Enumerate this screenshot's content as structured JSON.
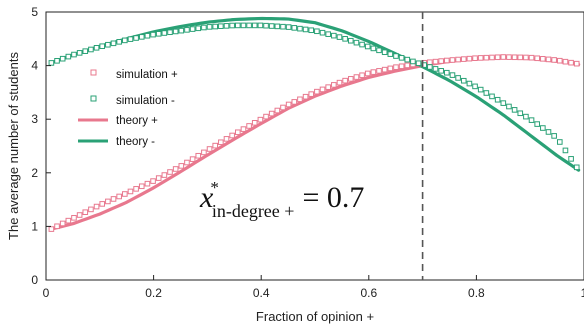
{
  "chart_data": {
    "type": "line",
    "xlabel": "Fraction of opinion +",
    "ylabel": "The average number of students",
    "xlim": [
      0,
      1
    ],
    "ylim": [
      0,
      5
    ],
    "x_ticks": [
      "0",
      "0.2",
      "0.4",
      "0.6",
      "0.8",
      "1"
    ],
    "y_ticks": [
      "0",
      "1",
      "2",
      "3",
      "4",
      "5"
    ],
    "grid": false,
    "legend_position": "upper-left",
    "annotation": {
      "base": "x",
      "superscript": "*",
      "subscript": "in-degree +",
      "equation": "= 0.7",
      "x": 0.28,
      "y": 1.6
    },
    "vline": {
      "x": 0.7,
      "style": "dashed",
      "color": "#555555"
    },
    "colors": {
      "plus": "#e8788e",
      "minus": "#2aa176"
    },
    "series": [
      {
        "name": "simulation +",
        "kind": "markers",
        "color": "#e8788e",
        "x": [
          0.01,
          0.05,
          0.1,
          0.15,
          0.2,
          0.25,
          0.3,
          0.35,
          0.4,
          0.45,
          0.5,
          0.55,
          0.6,
          0.65,
          0.7,
          0.75,
          0.8,
          0.85,
          0.9,
          0.95,
          0.99
        ],
        "y": [
          0.95,
          1.15,
          1.4,
          1.62,
          1.85,
          2.12,
          2.42,
          2.72,
          3.0,
          3.27,
          3.5,
          3.7,
          3.86,
          3.97,
          4.05,
          4.1,
          4.14,
          4.16,
          4.15,
          4.1,
          4.03
        ]
      },
      {
        "name": "simulation -",
        "kind": "markers",
        "color": "#2aa176",
        "x": [
          0.01,
          0.05,
          0.1,
          0.15,
          0.2,
          0.25,
          0.3,
          0.35,
          0.4,
          0.45,
          0.5,
          0.55,
          0.6,
          0.65,
          0.7,
          0.75,
          0.8,
          0.85,
          0.9,
          0.95,
          0.99
        ],
        "y": [
          4.05,
          4.2,
          4.35,
          4.48,
          4.58,
          4.65,
          4.72,
          4.75,
          4.75,
          4.72,
          4.65,
          4.52,
          4.35,
          4.18,
          4.02,
          3.85,
          3.6,
          3.3,
          3.0,
          2.65,
          2.05
        ]
      },
      {
        "name": "theory +",
        "kind": "line",
        "color": "#e8788e",
        "x": [
          0.01,
          0.05,
          0.1,
          0.15,
          0.2,
          0.25,
          0.3,
          0.35,
          0.4,
          0.45,
          0.5,
          0.55,
          0.6,
          0.65,
          0.7,
          0.75,
          0.8,
          0.85,
          0.9,
          0.95,
          0.99
        ],
        "y": [
          0.95,
          1.05,
          1.23,
          1.45,
          1.72,
          2.02,
          2.33,
          2.63,
          2.92,
          3.2,
          3.43,
          3.62,
          3.78,
          3.9,
          4.0,
          4.08,
          4.13,
          4.15,
          4.13,
          4.08,
          4.02
        ]
      },
      {
        "name": "theory -",
        "kind": "line",
        "color": "#2aa176",
        "x": [
          0.01,
          0.05,
          0.1,
          0.15,
          0.2,
          0.25,
          0.3,
          0.35,
          0.4,
          0.45,
          0.5,
          0.55,
          0.6,
          0.65,
          0.7,
          0.75,
          0.8,
          0.85,
          0.9,
          0.95,
          0.99
        ],
        "y": [
          4.05,
          4.2,
          4.36,
          4.5,
          4.63,
          4.73,
          4.81,
          4.86,
          4.88,
          4.87,
          4.8,
          4.65,
          4.45,
          4.22,
          3.98,
          3.72,
          3.42,
          3.08,
          2.7,
          2.32,
          2.05
        ]
      }
    ]
  }
}
